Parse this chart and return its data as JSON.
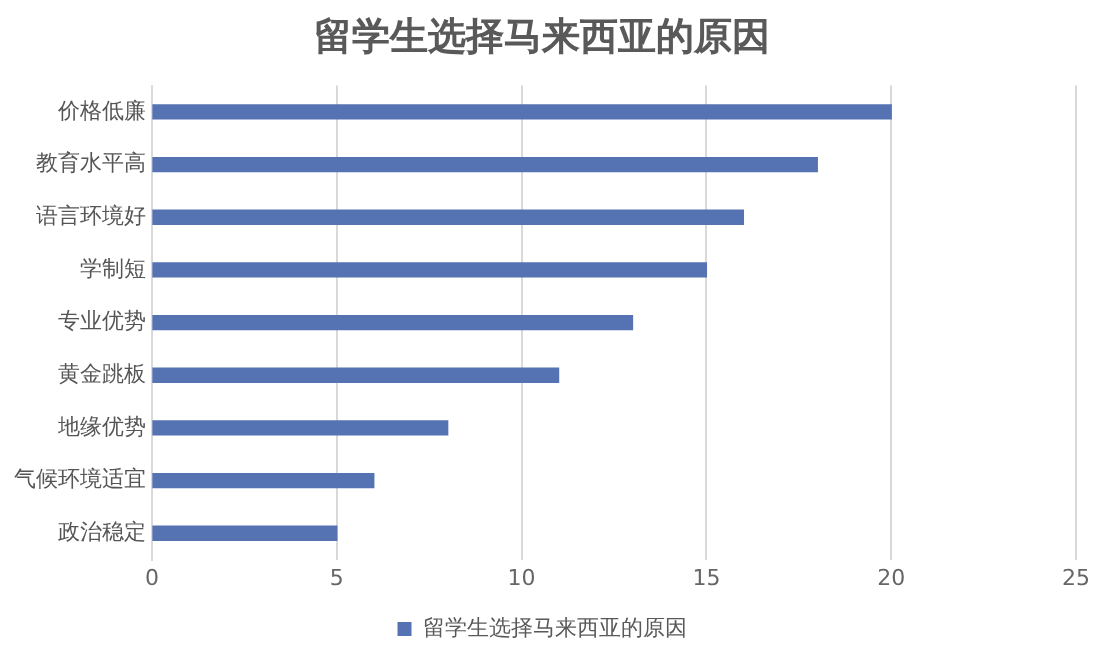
{
  "chart_data": {
    "type": "bar",
    "orientation": "horizontal",
    "title": "留学生选择马来西亚的原因",
    "categories": [
      "价格低廉",
      "教育水平高",
      "语言环境好",
      "学制短",
      "专业优势",
      "黄金跳板",
      "地缘优势",
      "气候环境适宜",
      "政治稳定"
    ],
    "series": [
      {
        "name": "留学生选择马来西亚的原因",
        "color": "#5572b3",
        "values": [
          20,
          18,
          16,
          15,
          13,
          11,
          8,
          6,
          5
        ]
      }
    ],
    "xlim": [
      0,
      25
    ],
    "xticks": [
      0,
      5,
      10,
      15,
      20,
      25
    ],
    "grid": "x",
    "legend": "bottom"
  }
}
